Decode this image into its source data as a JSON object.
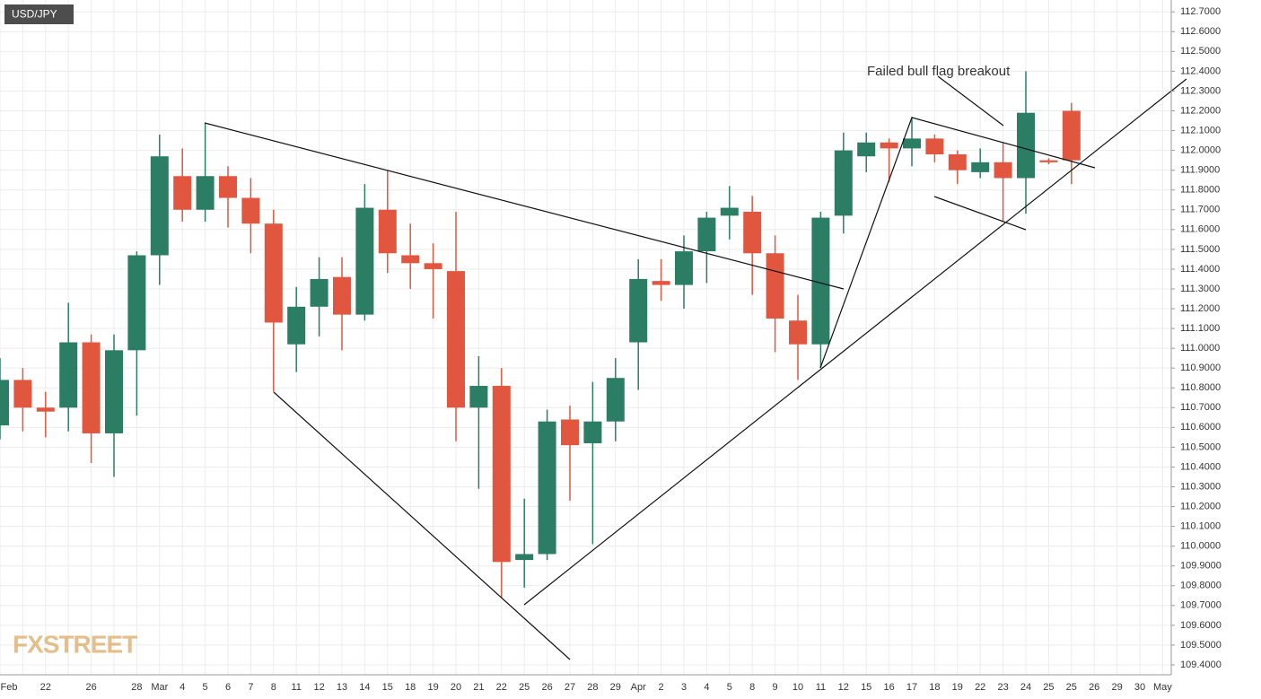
{
  "chart_data": {
    "type": "candlestick",
    "title": "USD/JPY",
    "annotation": "Failed bull flag breakout",
    "logo": "FXSTREET",
    "up_color": "#2b7d63",
    "down_color": "#e0563f",
    "grid": true,
    "categories": [
      "Feb",
      null,
      "22",
      null,
      "26",
      null,
      "28",
      "Mar",
      "4",
      "5",
      "6",
      "7",
      "8",
      "11",
      "12",
      "13",
      "14",
      "15",
      "18",
      "19",
      "20",
      "21",
      "22",
      "25",
      "26",
      "27",
      "28",
      "29",
      "Apr",
      "2",
      "3",
      "4",
      "5",
      "8",
      "9",
      "10",
      "11",
      "12",
      "15",
      "16",
      "17",
      "18",
      "19",
      "22",
      "23",
      "24",
      "25",
      "25",
      "26",
      "29",
      "30",
      "May"
    ],
    "open": [
      110.61,
      110.84,
      110.7,
      110.7,
      111.03,
      110.57,
      110.99,
      111.47,
      111.87,
      111.7,
      111.87,
      111.76,
      111.63,
      111.02,
      111.21,
      111.36,
      111.17,
      111.7,
      111.47,
      111.43,
      111.39,
      110.7,
      110.81,
      109.93,
      109.96,
      110.64,
      110.52,
      110.63,
      111.03,
      111.34,
      111.32,
      111.49,
      111.67,
      111.69,
      111.48,
      111.14,
      111.02,
      111.67,
      111.97,
      112.04,
      112.01,
      112.06,
      111.98,
      111.89,
      111.94,
      111.86,
      111.95,
      112.2,
      null,
      null,
      null,
      null
    ],
    "high": [
      110.95,
      110.9,
      110.78,
      111.23,
      111.07,
      111.07,
      111.49,
      112.08,
      112.01,
      112.14,
      111.92,
      111.86,
      111.7,
      111.31,
      111.46,
      111.46,
      111.83,
      111.9,
      111.63,
      111.53,
      111.69,
      110.96,
      110.9,
      110.24,
      110.69,
      110.71,
      110.83,
      110.95,
      111.45,
      111.45,
      111.57,
      111.69,
      111.82,
      111.77,
      111.57,
      111.27,
      111.69,
      112.09,
      112.09,
      112.06,
      112.17,
      112.08,
      112.0,
      112.01,
      112.04,
      112.4,
      111.96,
      112.24,
      null,
      null,
      null,
      null
    ],
    "low": [
      110.54,
      110.58,
      110.55,
      110.58,
      110.42,
      110.35,
      110.66,
      111.32,
      111.64,
      111.64,
      111.61,
      111.48,
      110.78,
      110.88,
      111.06,
      110.99,
      111.14,
      111.38,
      111.3,
      111.15,
      110.53,
      110.29,
      109.74,
      109.79,
      109.93,
      110.23,
      110.01,
      110.53,
      110.79,
      111.24,
      111.2,
      111.33,
      111.55,
      111.27,
      110.98,
      110.84,
      110.9,
      111.58,
      111.89,
      111.84,
      111.92,
      111.94,
      111.83,
      111.86,
      111.64,
      111.68,
      111.93,
      111.83,
      null,
      null,
      null,
      null
    ],
    "close": [
      110.84,
      110.7,
      110.68,
      111.03,
      110.57,
      110.99,
      111.47,
      111.97,
      111.7,
      111.87,
      111.76,
      111.63,
      111.13,
      111.21,
      111.35,
      111.17,
      111.71,
      111.48,
      111.43,
      111.4,
      110.7,
      110.81,
      109.92,
      109.96,
      110.63,
      110.51,
      110.63,
      110.85,
      111.35,
      111.32,
      111.49,
      111.66,
      111.71,
      111.48,
      111.15,
      111.02,
      111.66,
      112.0,
      112.04,
      112.01,
      112.06,
      111.98,
      111.9,
      111.94,
      111.86,
      112.19,
      111.94,
      111.95,
      null,
      null,
      null,
      null
    ],
    "ylim": [
      109.35,
      112.76
    ],
    "yticks": [
      {
        "value": 109.4,
        "label": "109.4000"
      },
      {
        "value": 109.5,
        "label": "109.5000"
      },
      {
        "value": 109.6,
        "label": "109.6000"
      },
      {
        "value": 109.7,
        "label": "109.7000"
      },
      {
        "value": 109.8,
        "label": "109.8000"
      },
      {
        "value": 109.9,
        "label": "109.9000"
      },
      {
        "value": 110.0,
        "label": "110.0000"
      },
      {
        "value": 110.1,
        "label": "110.1000"
      },
      {
        "value": 110.2,
        "label": "110.2000"
      },
      {
        "value": 110.3,
        "label": "110.3000"
      },
      {
        "value": 110.4,
        "label": "110.4000"
      },
      {
        "value": 110.5,
        "label": "110.5000"
      },
      {
        "value": 110.6,
        "label": "110.6000"
      },
      {
        "value": 110.7,
        "label": "110.7000"
      },
      {
        "value": 110.8,
        "label": "110.8000"
      },
      {
        "value": 110.9,
        "label": "110.9000"
      },
      {
        "value": 111.0,
        "label": "111.0000"
      },
      {
        "value": 111.1,
        "label": "111.1000"
      },
      {
        "value": 111.2,
        "label": "111.2000"
      },
      {
        "value": 111.3,
        "label": "111.3000"
      },
      {
        "value": 111.4,
        "label": "111.4000"
      },
      {
        "value": 111.5,
        "label": "111.5000"
      },
      {
        "value": 111.6,
        "label": "111.6000"
      },
      {
        "value": 111.7,
        "label": "111.7000"
      },
      {
        "value": 111.8,
        "label": "111.8000"
      },
      {
        "value": 111.9,
        "label": "111.9000"
      },
      {
        "value": 112.0,
        "label": "112.0000"
      },
      {
        "value": 112.1,
        "label": "112.1000"
      },
      {
        "value": 112.2,
        "label": "112.2000"
      },
      {
        "value": 112.3,
        "label": "112.3000"
      },
      {
        "value": 112.4,
        "label": "112.4000"
      },
      {
        "value": 112.5,
        "label": "112.5000"
      },
      {
        "value": 112.6,
        "label": "112.6000"
      },
      {
        "value": 112.7,
        "label": "112.7000"
      }
    ]
  }
}
